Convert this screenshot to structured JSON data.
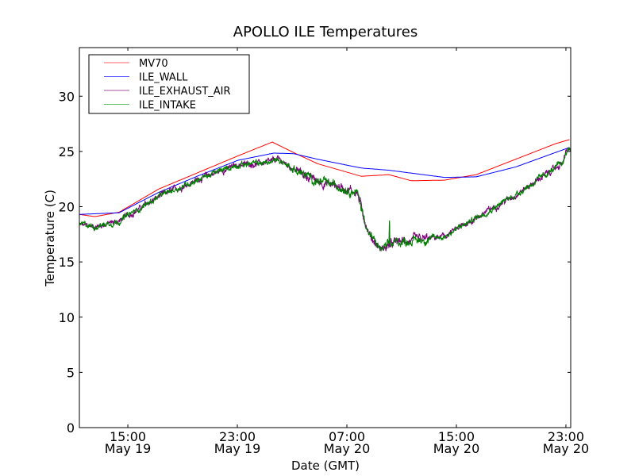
{
  "chart_data": {
    "type": "line",
    "title": "APOLLO ILE Temperatures",
    "xlabel": "Date (GMT)",
    "ylabel": "Temperature (C)",
    "x_units": "hours since May 19 00:00 GMT",
    "xlim": [
      11.46,
      47.35
    ],
    "ylim": [
      0,
      34.4
    ],
    "yticks": [
      0,
      5,
      10,
      15,
      20,
      25,
      30
    ],
    "xticks": [
      {
        "value": 15,
        "time": "15:00",
        "date": "May 19"
      },
      {
        "value": 23,
        "time": "23:00",
        "date": "May 19"
      },
      {
        "value": 31,
        "time": "07:00",
        "date": "May 20"
      },
      {
        "value": 39,
        "time": "15:00",
        "date": "May 20"
      },
      {
        "value": 47,
        "time": "23:00",
        "date": "May 20"
      }
    ],
    "legend_position": "top-left",
    "grid": false,
    "series": [
      {
        "name": "MV70",
        "color": "#ff0000",
        "noisy": false,
        "x": [
          11.46,
          12.6,
          14.36,
          17.26,
          20.16,
          23.05,
          25.55,
          27.11,
          28.85,
          32.04,
          34.07,
          35.69,
          38.13,
          40.45,
          43.34,
          46.24,
          47.34
        ],
        "y": [
          19.3,
          19.1,
          19.5,
          21.6,
          23.1,
          24.6,
          25.85,
          24.9,
          23.9,
          22.75,
          22.9,
          22.35,
          22.4,
          22.9,
          24.3,
          25.7,
          26.1
        ]
      },
      {
        "name": "ILE_WALL",
        "color": "#0000ff",
        "noisy": false,
        "x": [
          11.46,
          14.36,
          17.26,
          20.16,
          23.05,
          25.67,
          27.11,
          28.85,
          32.04,
          34.07,
          38.13,
          40.45,
          43.34,
          47.34
        ],
        "y": [
          19.3,
          19.45,
          21.3,
          22.8,
          24.2,
          24.85,
          24.8,
          24.3,
          23.5,
          23.3,
          22.65,
          22.7,
          23.6,
          25.4
        ]
      },
      {
        "name": "ILE_EXHAUST_AIR",
        "color": "#800080",
        "noisy": true,
        "x": [
          11.46,
          12.6,
          14.36,
          17.26,
          20.16,
          23.05,
          25.38,
          25.96,
          27.69,
          28.85,
          30.59,
          31.75,
          32.04,
          32.62,
          33.49,
          34.65,
          36.39,
          38.13,
          40.45,
          43.34,
          46.24,
          46.82,
          47.0,
          47.34
        ],
        "y": [
          18.35,
          18.2,
          18.7,
          20.9,
          22.5,
          23.8,
          24.0,
          24.3,
          23.0,
          22.3,
          21.8,
          21.3,
          20.0,
          17.5,
          16.1,
          16.8,
          17.0,
          17.3,
          19.0,
          21.1,
          23.5,
          24.0,
          25.0,
          25.2
        ]
      },
      {
        "name": "ILE_INTAKE",
        "color": "#008000",
        "noisy": true,
        "x": [
          11.46,
          12.6,
          14.36,
          17.26,
          20.16,
          23.05,
          25.38,
          25.96,
          27.69,
          28.85,
          30.59,
          31.75,
          32.04,
          32.62,
          33.49,
          34.65,
          36.39,
          38.13,
          40.45,
          43.34,
          46.24,
          46.82,
          47.0,
          47.34
        ],
        "y": [
          18.4,
          18.2,
          18.7,
          20.9,
          22.5,
          23.8,
          24.0,
          24.3,
          23.0,
          22.3,
          21.8,
          21.3,
          20.0,
          17.5,
          16.1,
          16.8,
          17.0,
          17.3,
          19.0,
          21.1,
          23.5,
          24.0,
          25.0,
          25.3
        ]
      }
    ]
  }
}
